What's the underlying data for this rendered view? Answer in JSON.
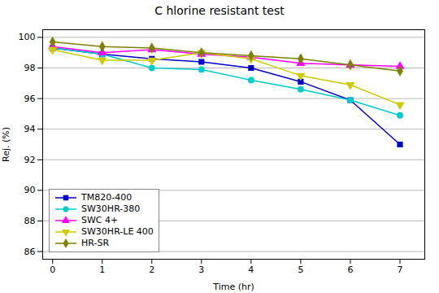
{
  "chart_data": {
    "type": "line",
    "title": "C hlorine resistant test",
    "xlabel": "Time (hr)",
    "ylabel": "Rej. (%)",
    "x": [
      0,
      1,
      2,
      3,
      4,
      5,
      6,
      7
    ],
    "xlim": [
      -0.2,
      7.5
    ],
    "ylim": [
      85.5,
      100.5
    ],
    "xticks": [
      0,
      1,
      2,
      3,
      4,
      5,
      6,
      7
    ],
    "yticks": [
      86,
      88,
      90,
      92,
      94,
      96,
      98,
      100
    ],
    "grid": "y",
    "legend": "lower left",
    "series": [
      {
        "name": "TM820-400",
        "color": "#0000CC",
        "marker": "square",
        "values": [
          99.3,
          98.9,
          98.6,
          98.4,
          98.0,
          97.1,
          95.9,
          93.0
        ]
      },
      {
        "name": "SW30HR-380",
        "color": "#00CCCC",
        "marker": "circle",
        "values": [
          99.3,
          98.9,
          98.0,
          97.9,
          97.2,
          96.6,
          95.9,
          94.9
        ]
      },
      {
        "name": "SWC 4+",
        "color": "#FF00FF",
        "marker": "triangle-up",
        "values": [
          99.4,
          99.0,
          99.2,
          98.9,
          98.7,
          98.3,
          98.2,
          98.1
        ]
      },
      {
        "name": "SW30HR-LE 400",
        "color": "#CCCC00",
        "marker": "triangle-down",
        "values": [
          99.2,
          98.5,
          98.5,
          99.0,
          98.6,
          97.5,
          96.9,
          95.6
        ]
      },
      {
        "name": "HR-SR",
        "color": "#808000",
        "marker": "diamond",
        "values": [
          99.7,
          99.4,
          99.3,
          99.0,
          98.8,
          98.6,
          98.2,
          97.8
        ]
      }
    ]
  }
}
